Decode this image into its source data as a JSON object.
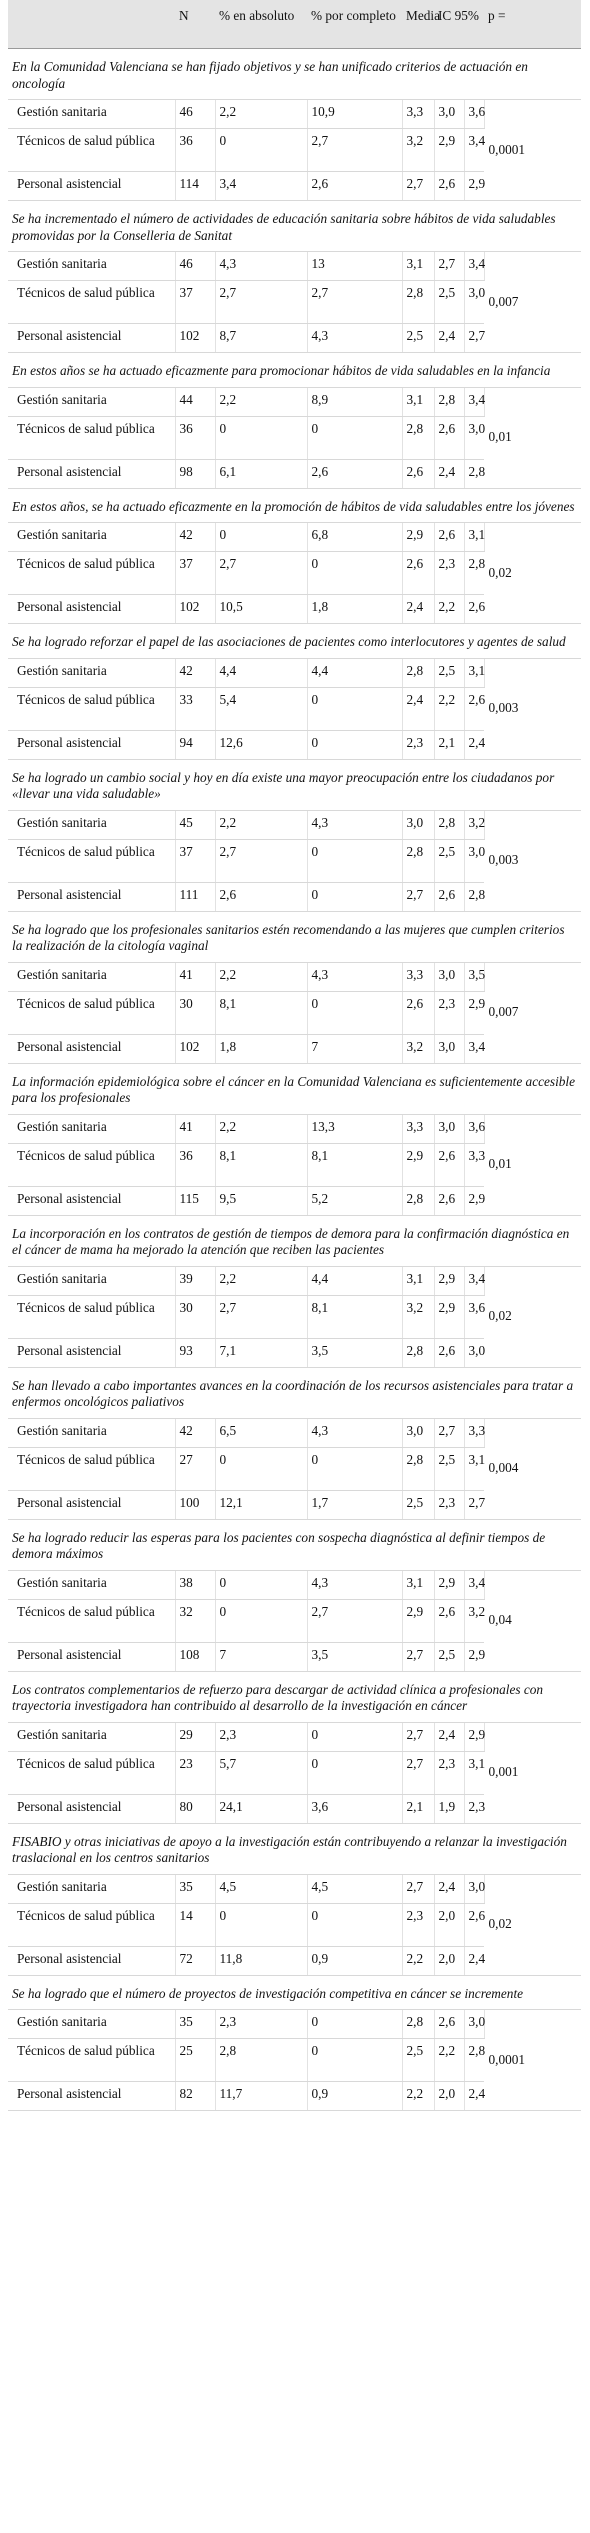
{
  "header": {
    "cols": [
      "",
      "N",
      "% en absoluto",
      "% por completo",
      "Media",
      "IC 95%",
      "",
      "p ="
    ]
  },
  "sections": [
    {
      "question": "En la Comunidad Valenciana se han fijado objetivos y se han unificado criterios de actuación en oncología",
      "rows": [
        {
          "cat": "Gestión sanitaria",
          "n": "46",
          "abs": "2,2",
          "comp": "10,9",
          "media": "3,3",
          "lo": "3,0",
          "hi": "3,6"
        },
        {
          "cat": "Técnicos de salud pública",
          "n": "36",
          "abs": "0",
          "comp": "2,7",
          "media": "3,2",
          "lo": "2,9",
          "hi": "3,4"
        },
        {
          "cat": "Personal asistencial",
          "n": "114",
          "abs": "3,4",
          "comp": "2,6",
          "media": "2,7",
          "lo": "2,6",
          "hi": "2,9"
        }
      ],
      "p": "0,0001"
    },
    {
      "question": "Se ha incrementado el número de actividades de educación sanitaria sobre hábitos de vida saludables promovidas por la Conselleria de Sanitat",
      "rows": [
        {
          "cat": "Gestión sanitaria",
          "n": "46",
          "abs": "4,3",
          "comp": "13",
          "media": "3,1",
          "lo": "2,7",
          "hi": "3,4"
        },
        {
          "cat": "Técnicos de salud pública",
          "n": "37",
          "abs": "2,7",
          "comp": "2,7",
          "media": "2,8",
          "lo": "2,5",
          "hi": "3,0"
        },
        {
          "cat": "Personal asistencial",
          "n": "102",
          "abs": "8,7",
          "comp": "4,3",
          "media": "2,5",
          "lo": "2,4",
          "hi": "2,7"
        }
      ],
      "p": "0,007"
    },
    {
      "question": "En estos años se ha actuado eficazmente para promocionar hábitos de vida saludables en la infancia",
      "rows": [
        {
          "cat": "Gestión sanitaria",
          "n": "44",
          "abs": "2,2",
          "comp": "8,9",
          "media": "3,1",
          "lo": "2,8",
          "hi": "3,4"
        },
        {
          "cat": "Técnicos de salud pública",
          "n": "36",
          "abs": "0",
          "comp": "0",
          "media": "2,8",
          "lo": "2,6",
          "hi": "3,0"
        },
        {
          "cat": "Personal asistencial",
          "n": "98",
          "abs": "6,1",
          "comp": "2,6",
          "media": "2,6",
          "lo": "2,4",
          "hi": "2,8"
        }
      ],
      "p": "0,01"
    },
    {
      "question": "En estos años, se ha actuado eficazmente en la promoción de hábitos de vida saludables entre los jóvenes",
      "rows": [
        {
          "cat": "Gestión sanitaria",
          "n": "42",
          "abs": "0",
          "comp": "6,8",
          "media": "2,9",
          "lo": "2,6",
          "hi": "3,1"
        },
        {
          "cat": "Técnicos de salud pública",
          "n": "37",
          "abs": "2,7",
          "comp": "0",
          "media": "2,6",
          "lo": "2,3",
          "hi": "2,8"
        },
        {
          "cat": "Personal asistencial",
          "n": "102",
          "abs": "10,5",
          "comp": "1,8",
          "media": "2,4",
          "lo": "2,2",
          "hi": "2,6"
        }
      ],
      "p": "0,02"
    },
    {
      "question": "Se ha logrado reforzar el papel de las asociaciones de pacientes como interlocutores y agentes de salud",
      "rows": [
        {
          "cat": "Gestión sanitaria",
          "n": "42",
          "abs": "4,4",
          "comp": "4,4",
          "media": "2,8",
          "lo": "2,5",
          "hi": "3,1"
        },
        {
          "cat": "Técnicos de salud pública",
          "n": "33",
          "abs": "5,4",
          "comp": "0",
          "media": "2,4",
          "lo": "2,2",
          "hi": "2,6"
        },
        {
          "cat": "Personal asistencial",
          "n": "94",
          "abs": "12,6",
          "comp": "0",
          "media": "2,3",
          "lo": "2,1",
          "hi": "2,4"
        }
      ],
      "p": "0,003"
    },
    {
      "question": "Se ha logrado un cambio social y hoy en día existe una mayor preocupación entre los ciudadanos por «llevar una vida saludable»",
      "rows": [
        {
          "cat": "Gestión sanitaria",
          "n": "45",
          "abs": "2,2",
          "comp": "4,3",
          "media": "3,0",
          "lo": "2,8",
          "hi": "3,2"
        },
        {
          "cat": "Técnicos de salud pública",
          "n": "37",
          "abs": "2,7",
          "comp": "0",
          "media": "2,8",
          "lo": "2,5",
          "hi": "3,0"
        },
        {
          "cat": "Personal asistencial",
          "n": "111",
          "abs": "2,6",
          "comp": "0",
          "media": "2,7",
          "lo": "2,6",
          "hi": "2,8"
        }
      ],
      "p": "0,003"
    },
    {
      "question": "Se ha logrado que los profesionales sanitarios estén recomendando a las mujeres que cumplen criterios la realización de la citología vaginal",
      "rows": [
        {
          "cat": "Gestión sanitaria",
          "n": "41",
          "abs": "2,2",
          "comp": "4,3",
          "media": "3,3",
          "lo": "3,0",
          "hi": "3,5"
        },
        {
          "cat": "Técnicos de salud pública",
          "n": "30",
          "abs": "8,1",
          "comp": "0",
          "media": "2,6",
          "lo": "2,3",
          "hi": "2,9"
        },
        {
          "cat": "Personal asistencial",
          "n": "102",
          "abs": "1,8",
          "comp": "7",
          "media": "3,2",
          "lo": "3,0",
          "hi": "3,4"
        }
      ],
      "p": "0,007"
    },
    {
      "question": "La información epidemiológica sobre el cáncer en la Comunidad Valenciana es suficientemente accesible para los profesionales",
      "rows": [
        {
          "cat": "Gestión sanitaria",
          "n": "41",
          "abs": "2,2",
          "comp": "13,3",
          "media": "3,3",
          "lo": "3,0",
          "hi": "3,6"
        },
        {
          "cat": "Técnicos de salud pública",
          "n": "36",
          "abs": "8,1",
          "comp": "8,1",
          "media": "2,9",
          "lo": "2,6",
          "hi": "3,3"
        },
        {
          "cat": "Personal asistencial",
          "n": "115",
          "abs": "9,5",
          "comp": "5,2",
          "media": "2,8",
          "lo": "2,6",
          "hi": "2,9"
        }
      ],
      "p": "0,01"
    },
    {
      "question": "La incorporación en los contratos de gestión de tiempos de demora para la confirmación diagnóstica en el cáncer de mama ha mejorado la atención que reciben las pacientes",
      "rows": [
        {
          "cat": "Gestión sanitaria",
          "n": "39",
          "abs": "2,2",
          "comp": "4,4",
          "media": "3,1",
          "lo": "2,9",
          "hi": "3,4"
        },
        {
          "cat": "Técnicos de salud pública",
          "n": "30",
          "abs": "2,7",
          "comp": "8,1",
          "media": "3,2",
          "lo": "2,9",
          "hi": "3,6"
        },
        {
          "cat": "Personal asistencial",
          "n": "93",
          "abs": "7,1",
          "comp": "3,5",
          "media": "2,8",
          "lo": "2,6",
          "hi": "3,0"
        }
      ],
      "p": "0,02"
    },
    {
      "question": "Se han llevado a cabo importantes avances en la coordinación de los recursos asistenciales para tratar a enfermos oncológicos paliativos",
      "rows": [
        {
          "cat": "Gestión sanitaria",
          "n": "42",
          "abs": "6,5",
          "comp": "4,3",
          "media": "3,0",
          "lo": "2,7",
          "hi": "3,3"
        },
        {
          "cat": "Técnicos de salud pública",
          "n": "27",
          "abs": "0",
          "comp": "0",
          "media": "2,8",
          "lo": "2,5",
          "hi": "3,1"
        },
        {
          "cat": "Personal asistencial",
          "n": "100",
          "abs": "12,1",
          "comp": "1,7",
          "media": "2,5",
          "lo": "2,3",
          "hi": "2,7"
        }
      ],
      "p": "0,004"
    },
    {
      "question": "Se ha logrado reducir las esperas para los pacientes con sospecha diagnóstica al definir tiempos de demora máximos",
      "rows": [
        {
          "cat": "Gestión sanitaria",
          "n": "38",
          "abs": "0",
          "comp": "4,3",
          "media": "3,1",
          "lo": "2,9",
          "hi": "3,4"
        },
        {
          "cat": "Técnicos de salud pública",
          "n": "32",
          "abs": "0",
          "comp": "2,7",
          "media": "2,9",
          "lo": "2,6",
          "hi": "3,2"
        },
        {
          "cat": "Personal asistencial",
          "n": "108",
          "abs": "7",
          "comp": "3,5",
          "media": "2,7",
          "lo": "2,5",
          "hi": "2,9"
        }
      ],
      "p": "0,04"
    },
    {
      "question": "Los contratos complementarios de refuerzo para descargar de actividad clínica a profesionales con trayectoria investigadora han contribuido al desarrollo de la investigación en cáncer",
      "rows": [
        {
          "cat": "Gestión sanitaria",
          "n": "29",
          "abs": "2,3",
          "comp": "0",
          "media": "2,7",
          "lo": "2,4",
          "hi": "2,9"
        },
        {
          "cat": "Técnicos de salud pública",
          "n": "23",
          "abs": "5,7",
          "comp": "0",
          "media": "2,7",
          "lo": "2,3",
          "hi": "3,1"
        },
        {
          "cat": "Personal asistencial",
          "n": "80",
          "abs": "24,1",
          "comp": "3,6",
          "media": "2,1",
          "lo": "1,9",
          "hi": "2,3"
        }
      ],
      "p": "0,001"
    },
    {
      "question": "FISABIO y otras iniciativas de apoyo a la investigación están contribuyendo a relanzar la investigación traslacional en los centros sanitarios",
      "rows": [
        {
          "cat": "Gestión sanitaria",
          "n": "35",
          "abs": "4,5",
          "comp": "4,5",
          "media": "2,7",
          "lo": "2,4",
          "hi": "3,0"
        },
        {
          "cat": "Técnicos de salud pública",
          "n": "14",
          "abs": "0",
          "comp": "0",
          "media": "2,3",
          "lo": "2,0",
          "hi": "2,6"
        },
        {
          "cat": "Personal asistencial",
          "n": "72",
          "abs": "11,8",
          "comp": "0,9",
          "media": "2,2",
          "lo": "2,0",
          "hi": "2,4"
        }
      ],
      "p": "0,02"
    },
    {
      "question": "Se ha logrado que el número de proyectos de investigación competitiva en cáncer se incremente",
      "rows": [
        {
          "cat": "Gestión sanitaria",
          "n": "35",
          "abs": "2,3",
          "comp": "0",
          "media": "2,8",
          "lo": "2,6",
          "hi": "3,0"
        },
        {
          "cat": "Técnicos de salud pública",
          "n": "25",
          "abs": "2,8",
          "comp": "0",
          "media": "2,5",
          "lo": "2,2",
          "hi": "2,8"
        },
        {
          "cat": "Personal asistencial",
          "n": "82",
          "abs": "11,7",
          "comp": "0,9",
          "media": "2,2",
          "lo": "2,0",
          "hi": "2,4"
        }
      ],
      "p": "0,0001"
    }
  ]
}
